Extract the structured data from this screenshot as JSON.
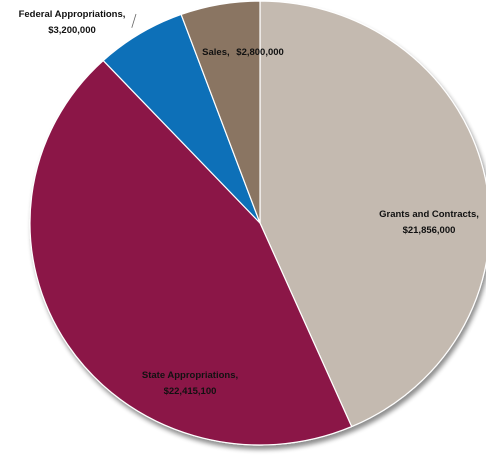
{
  "chart_data": {
    "type": "pie",
    "title": "",
    "slices": [
      {
        "name": "Grants and Contracts,",
        "value_label": "$21,856,000",
        "value": 21856000,
        "color": "#c4bab0"
      },
      {
        "name": "State Appropriations,",
        "value_label": "$22,415,100",
        "value": 22415100,
        "color": "#8b1547"
      },
      {
        "name": "Federal Appropriations,",
        "value_label": "$3,200,000",
        "value": 3200000,
        "color": "#0f70b8"
      },
      {
        "name": "Sales,",
        "value_label": "$2,800,000",
        "value": 2800000,
        "color": "#8a7562"
      }
    ],
    "legend": "none"
  }
}
